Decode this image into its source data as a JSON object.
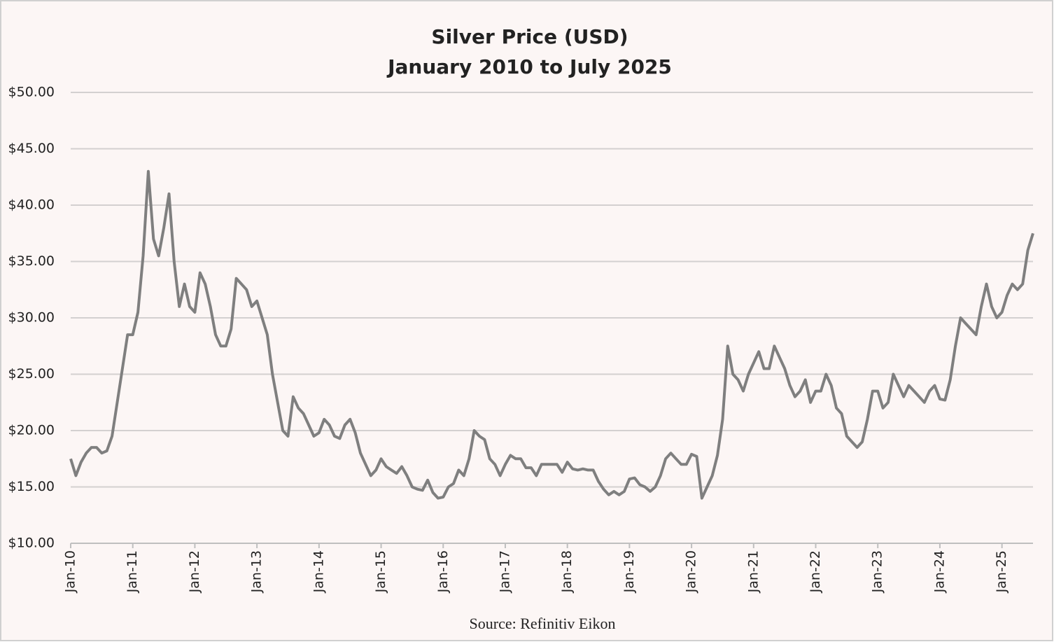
{
  "chart_data": {
    "type": "line",
    "title": "Silver Price (USD)",
    "subtitle": "January 2010 to July 2025",
    "source": "Source: Refinitiv Eikon",
    "x": [
      "2010-01",
      "2010-02",
      "2010-03",
      "2010-04",
      "2010-05",
      "2010-06",
      "2010-07",
      "2010-08",
      "2010-09",
      "2010-10",
      "2010-11",
      "2010-12",
      "2011-01",
      "2011-02",
      "2011-03",
      "2011-04",
      "2011-05",
      "2011-06",
      "2011-07",
      "2011-08",
      "2011-09",
      "2011-10",
      "2011-11",
      "2011-12",
      "2012-01",
      "2012-02",
      "2012-03",
      "2012-04",
      "2012-05",
      "2012-06",
      "2012-07",
      "2012-08",
      "2012-09",
      "2012-10",
      "2012-11",
      "2012-12",
      "2013-01",
      "2013-02",
      "2013-03",
      "2013-04",
      "2013-05",
      "2013-06",
      "2013-07",
      "2013-08",
      "2013-09",
      "2013-10",
      "2013-11",
      "2013-12",
      "2014-01",
      "2014-02",
      "2014-03",
      "2014-04",
      "2014-05",
      "2014-06",
      "2014-07",
      "2014-08",
      "2014-09",
      "2014-10",
      "2014-11",
      "2014-12",
      "2015-01",
      "2015-02",
      "2015-03",
      "2015-04",
      "2015-05",
      "2015-06",
      "2015-07",
      "2015-08",
      "2015-09",
      "2015-10",
      "2015-11",
      "2015-12",
      "2016-01",
      "2016-02",
      "2016-03",
      "2016-04",
      "2016-05",
      "2016-06",
      "2016-07",
      "2016-08",
      "2016-09",
      "2016-10",
      "2016-11",
      "2016-12",
      "2017-01",
      "2017-02",
      "2017-03",
      "2017-04",
      "2017-05",
      "2017-06",
      "2017-07",
      "2017-08",
      "2017-09",
      "2017-10",
      "2017-11",
      "2017-12",
      "2018-01",
      "2018-02",
      "2018-03",
      "2018-04",
      "2018-05",
      "2018-06",
      "2018-07",
      "2018-08",
      "2018-09",
      "2018-10",
      "2018-11",
      "2018-12",
      "2019-01",
      "2019-02",
      "2019-03",
      "2019-04",
      "2019-05",
      "2019-06",
      "2019-07",
      "2019-08",
      "2019-09",
      "2019-10",
      "2019-11",
      "2019-12",
      "2020-01",
      "2020-02",
      "2020-03",
      "2020-04",
      "2020-05",
      "2020-06",
      "2020-07",
      "2020-08",
      "2020-09",
      "2020-10",
      "2020-11",
      "2020-12",
      "2021-01",
      "2021-02",
      "2021-03",
      "2021-04",
      "2021-05",
      "2021-06",
      "2021-07",
      "2021-08",
      "2021-09",
      "2021-10",
      "2021-11",
      "2021-12",
      "2022-01",
      "2022-02",
      "2022-03",
      "2022-04",
      "2022-05",
      "2022-06",
      "2022-07",
      "2022-08",
      "2022-09",
      "2022-10",
      "2022-11",
      "2022-12",
      "2023-01",
      "2023-02",
      "2023-03",
      "2023-04",
      "2023-05",
      "2023-06",
      "2023-07",
      "2023-08",
      "2023-09",
      "2023-10",
      "2023-11",
      "2023-12",
      "2024-01",
      "2024-02",
      "2024-03",
      "2024-04",
      "2024-05",
      "2024-06",
      "2024-07",
      "2024-08",
      "2024-09",
      "2024-10",
      "2024-11",
      "2024-12",
      "2025-01",
      "2025-02",
      "2025-03",
      "2025-04",
      "2025-05",
      "2025-06",
      "2025-07"
    ],
    "series": [
      {
        "color": "#7f7f7f",
        "values": [
          17.5,
          16.0,
          17.2,
          18.0,
          18.5,
          18.5,
          18.0,
          18.2,
          19.5,
          22.5,
          25.5,
          28.5,
          28.5,
          30.5,
          35.5,
          43,
          37,
          35.5,
          38,
          41,
          35,
          31,
          33,
          31,
          30.5,
          34,
          33,
          31,
          28.5,
          27.5,
          27.5,
          29,
          33.5,
          33,
          32.5,
          31,
          31.5,
          30,
          28.5,
          25,
          22.5,
          20,
          19.5,
          23,
          22,
          21.5,
          20.5,
          19.5,
          19.8,
          21,
          20.5,
          19.5,
          19.3,
          20.5,
          21,
          19.8,
          18,
          17,
          16,
          16.5,
          17.5,
          16.8,
          16.5,
          16.2,
          16.8,
          16,
          15,
          14.8,
          14.7,
          15.6,
          14.5,
          14,
          14.1,
          15,
          15.3,
          16.5,
          16,
          17.5,
          20,
          19.5,
          19.2,
          17.5,
          17,
          16,
          17,
          17.8,
          17.5,
          17.5,
          16.7,
          16.7,
          16,
          17,
          17,
          17,
          17,
          16.3,
          17.2,
          16.6,
          16.5,
          16.6,
          16.5,
          16.5,
          15.5,
          14.8,
          14.3,
          14.6,
          14.3,
          14.6,
          15.7,
          15.8,
          15.2,
          15,
          14.6,
          15,
          16,
          17.5,
          18,
          17.5,
          17,
          17,
          17.9,
          17.7,
          14,
          15,
          16,
          17.8,
          21,
          27.5,
          25,
          24.5,
          23.5,
          25,
          26,
          27,
          25.5,
          25.5,
          27.5,
          26.5,
          25.5,
          24,
          23,
          23.5,
          24.5,
          22.5,
          23.5,
          23.5,
          25,
          24,
          22,
          21.5,
          19.5,
          19,
          18.5,
          19,
          21,
          23.5,
          23.5,
          22,
          22.5,
          25,
          24,
          23,
          24,
          23.5,
          23,
          22.5,
          23.5,
          24,
          22.8,
          22.7,
          24.5,
          27.5,
          30,
          29.5,
          29,
          28.5,
          31,
          33,
          31,
          30,
          30.5,
          32,
          33,
          32.5,
          33,
          36,
          37.5
        ]
      }
    ],
    "xlim": [
      "2010-01",
      "2025-07"
    ],
    "xticks": [
      {
        "value": "2010-01",
        "label": "Jan-10"
      },
      {
        "value": "2011-01",
        "label": "Jan-11"
      },
      {
        "value": "2012-01",
        "label": "Jan-12"
      },
      {
        "value": "2013-01",
        "label": "Jan-13"
      },
      {
        "value": "2014-01",
        "label": "Jan-14"
      },
      {
        "value": "2015-01",
        "label": "Jan-15"
      },
      {
        "value": "2016-01",
        "label": "Jan-16"
      },
      {
        "value": "2017-01",
        "label": "Jan-17"
      },
      {
        "value": "2018-01",
        "label": "Jan-18"
      },
      {
        "value": "2019-01",
        "label": "Jan-19"
      },
      {
        "value": "2020-01",
        "label": "Jan-20"
      },
      {
        "value": "2021-01",
        "label": "Jan-21"
      },
      {
        "value": "2022-01",
        "label": "Jan-22"
      },
      {
        "value": "2023-01",
        "label": "Jan-23"
      },
      {
        "value": "2024-01",
        "label": "Jan-24"
      },
      {
        "value": "2025-01",
        "label": "Jan-25"
      }
    ],
    "ylim": [
      10,
      50
    ],
    "yticks": [
      {
        "value": 10,
        "label": "$10.00"
      },
      {
        "value": 15,
        "label": "$15.00"
      },
      {
        "value": 20,
        "label": "$20.00"
      },
      {
        "value": 25,
        "label": "$25.00"
      },
      {
        "value": 30,
        "label": "$30.00"
      },
      {
        "value": 35,
        "label": "$35.00"
      },
      {
        "value": 40,
        "label": "$40.00"
      },
      {
        "value": 45,
        "label": "$45.00"
      },
      {
        "value": 50,
        "label": "$50.00"
      }
    ],
    "grid": true
  }
}
